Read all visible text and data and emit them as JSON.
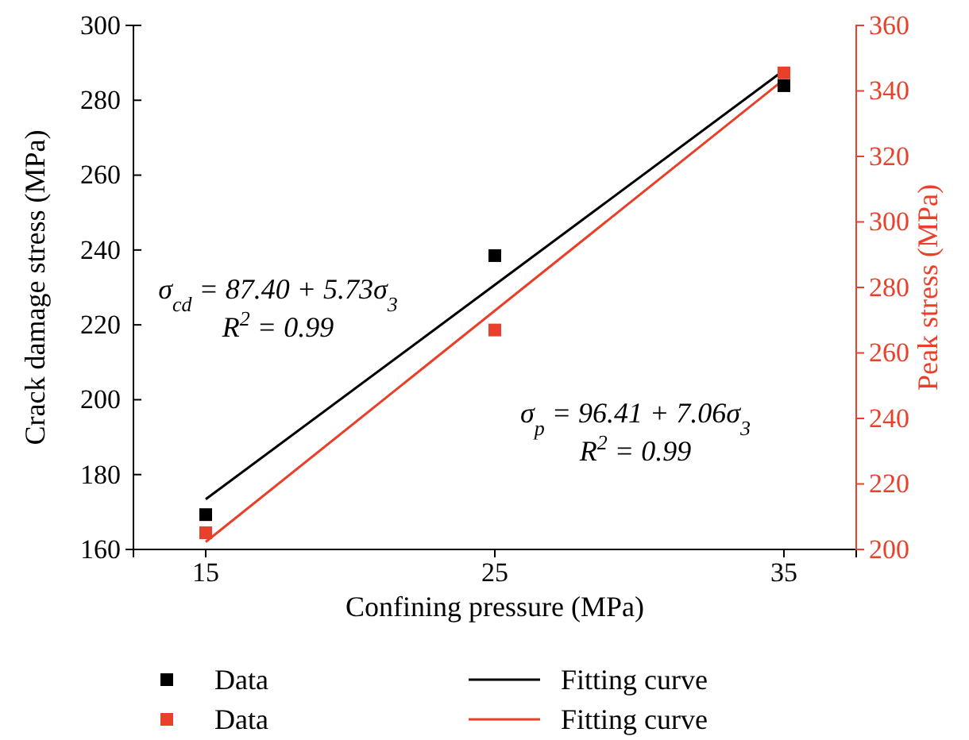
{
  "chart_data": {
    "type": "scatter",
    "xlabel": "Confining pressure (MPa)",
    "ylabel": "Crack damage stress (MPa)",
    "y2label": "Peak stress (MPa)",
    "x": [
      15,
      25,
      35
    ],
    "xlim": [
      12.5,
      37.5
    ],
    "xticks": [
      15,
      25,
      35
    ],
    "ylim": [
      160,
      300
    ],
    "yticks": [
      160,
      180,
      200,
      220,
      240,
      260,
      280,
      300
    ],
    "y2lim": [
      200,
      360
    ],
    "y2ticks": [
      200,
      220,
      240,
      260,
      280,
      300,
      320,
      340,
      360
    ],
    "legend": "bottom",
    "grid": false,
    "series": [
      {
        "name": "Data",
        "color": "#000000",
        "marker": "square",
        "values": [
          169.3,
          238.5,
          283.9
        ]
      },
      {
        "name": "Data",
        "color": "#e8402a",
        "marker": "square",
        "axis": "y2",
        "values": [
          205.1,
          267,
          345.5
        ]
      },
      {
        "name": "Fitting curve",
        "type": "line",
        "color": "#000000",
        "values": [
          173.4,
          230.7,
          288
        ],
        "line_style": "solid"
      },
      {
        "name": "Fitting curve",
        "type": "line",
        "color": "#e8402a",
        "axis": "y2",
        "values": [
          202.3,
          272.9,
          343.5
        ],
        "line_style": "solid"
      }
    ],
    "annotations": [
      "σ$_{cd}$ = 87.40 + 5.73σ$_{3}$",
      "R$^{2}$ = 0.99",
      "σ$_{p}$ = 96.41 + 7.06σ$_{3}$",
      "R$^{2}$ = 0.99"
    ]
  }
}
